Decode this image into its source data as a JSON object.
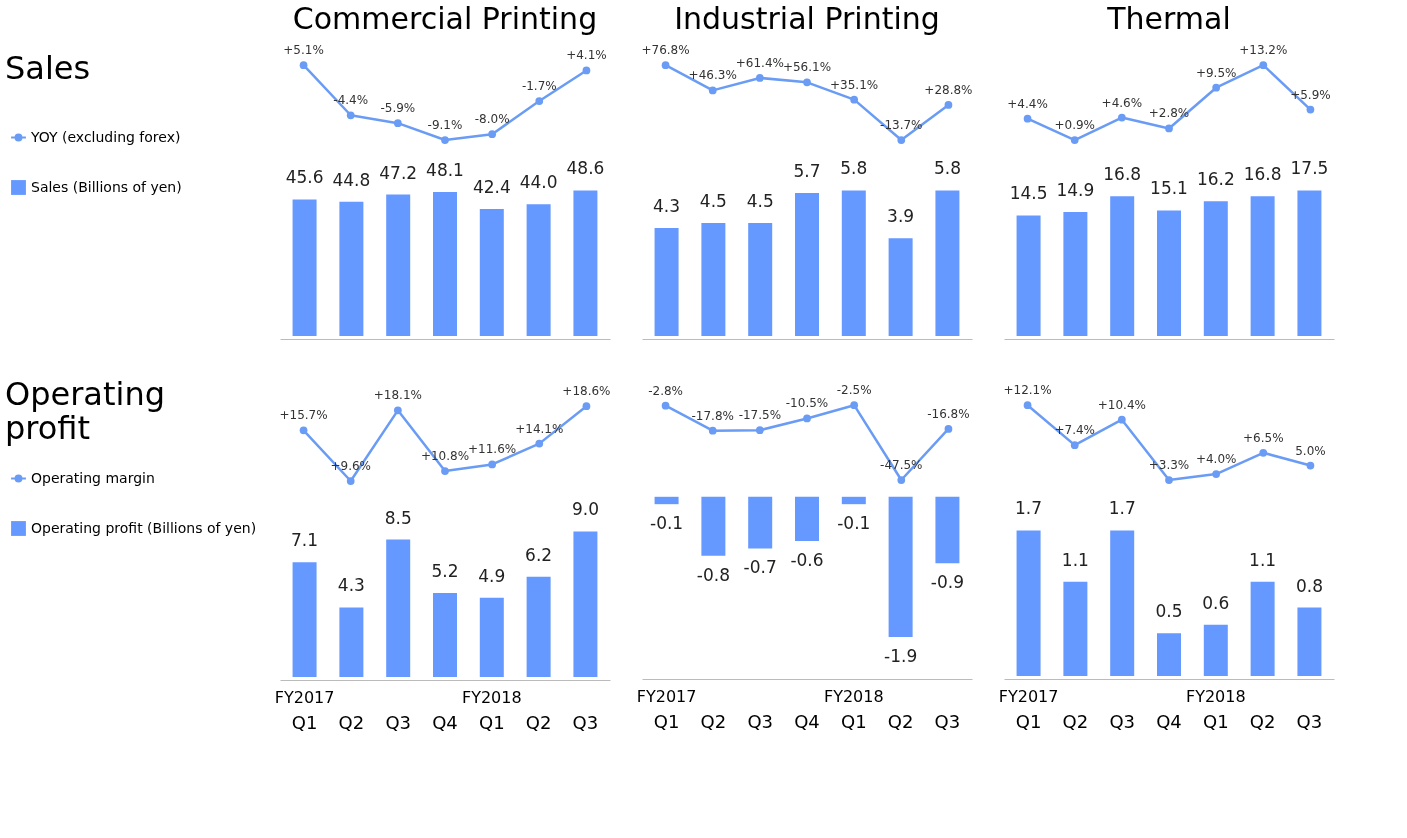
{
  "chart_data": [
    {
      "type": "line",
      "title": "Commercial Printing",
      "ylabel": "Sales",
      "categories": [
        null,
        null,
        null,
        null,
        null,
        null,
        null
      ],
      "tick_labels": false,
      "legend": "left",
      "marker": "circle",
      "series": [
        {
          "name": "YOY (excluding forex)",
          "color": "#6a9cf5",
          "values": [
            5.1,
            -4.4,
            -5.9,
            -9.1,
            -8.0,
            -1.7,
            4.1
          ],
          "value_labels": [
            "+5.1%",
            "-4.4%",
            "-5.9%",
            "-9.1%",
            "-8.0%",
            "-1.7%",
            "+4.1%"
          ]
        }
      ]
    },
    {
      "type": "line",
      "title": "Industrial Printing",
      "categories": [
        null,
        null,
        null,
        null,
        null,
        null,
        null
      ],
      "tick_labels": false,
      "marker": "circle",
      "series": [
        {
          "color": "#6a9cf5",
          "values": [
            76.8,
            46.3,
            61.4,
            56.1,
            35.1,
            -13.7,
            28.8
          ],
          "value_labels": [
            "+76.8%",
            "+46.3%",
            "+61.4%",
            "+56.1%",
            "+35.1%",
            "-13.7%",
            "+28.8%"
          ]
        }
      ]
    },
    {
      "type": "line",
      "title": "Thermal",
      "categories": [
        null,
        null,
        null,
        null,
        null,
        null,
        null
      ],
      "tick_labels": false,
      "marker": "circle",
      "series": [
        {
          "color": "#6a9cf5",
          "values": [
            4.4,
            0.9,
            4.6,
            2.8,
            9.5,
            13.2,
            5.9
          ],
          "value_labels": [
            "+4.4%",
            "+0.9%",
            "+4.6%",
            "+2.8%",
            "+9.5%",
            "+13.2%",
            "+5.9%"
          ]
        }
      ]
    },
    {
      "type": "bar",
      "categories": [
        null,
        null,
        null,
        null,
        null,
        null,
        null
      ],
      "tick_labels": false,
      "legend": "left",
      "series": [
        {
          "name": "Sales (Billions of yen)",
          "color": "#6699ff",
          "values": [
            45.6,
            44.8,
            47.2,
            48.1,
            42.4,
            44.0,
            48.6
          ],
          "value_labels": [
            "45.6",
            "44.8",
            "47.2",
            "48.1",
            "42.4",
            "44.0",
            "48.6"
          ]
        }
      ]
    },
    {
      "type": "bar",
      "categories": [
        null,
        null,
        null,
        null,
        null,
        null,
        null
      ],
      "tick_labels": false,
      "series": [
        {
          "color": "#6699ff",
          "values": [
            4.3,
            4.5,
            4.5,
            5.7,
            5.8,
            3.9,
            5.8
          ],
          "value_labels": [
            "4.3",
            "4.5",
            "4.5",
            "5.7",
            "5.8",
            "3.9",
            "5.8"
          ]
        }
      ]
    },
    {
      "type": "bar",
      "categories": [
        null,
        null,
        null,
        null,
        null,
        null,
        null
      ],
      "tick_labels": false,
      "series": [
        {
          "color": "#6699ff",
          "values": [
            14.5,
            14.9,
            16.8,
            15.1,
            16.2,
            16.8,
            17.5
          ],
          "value_labels": [
            "14.5",
            "14.9",
            "16.8",
            "15.1",
            "16.2",
            "16.8",
            "17.5"
          ]
        }
      ]
    },
    {
      "type": "line",
      "ylabel": "Operating profit",
      "categories": [
        null,
        null,
        null,
        null,
        null,
        null,
        null
      ],
      "tick_labels": false,
      "legend": "left",
      "marker": "circle",
      "series": [
        {
          "name": "Operating margin",
          "color": "#6a9cf5",
          "values": [
            15.7,
            9.6,
            18.1,
            10.8,
            11.6,
            14.1,
            18.6
          ],
          "value_labels": [
            "+15.7%",
            "+9.6%",
            "+18.1%",
            "+10.8%",
            "+11.6%",
            "+14.1%",
            "+18.6%"
          ]
        }
      ]
    },
    {
      "type": "line",
      "categories": [
        null,
        null,
        null,
        null,
        null,
        null,
        null
      ],
      "tick_labels": false,
      "marker": "circle",
      "series": [
        {
          "color": "#6a9cf5",
          "values": [
            -2.8,
            -17.8,
            -17.5,
            -10.5,
            -2.5,
            -47.5,
            -16.8
          ],
          "value_labels": [
            "-2.8%",
            "-17.8%",
            "-17.5%",
            "-10.5%",
            "-2.5%",
            "-47.5%",
            "-16.8%"
          ]
        }
      ]
    },
    {
      "type": "line",
      "categories": [
        null,
        null,
        null,
        null,
        null,
        null,
        null
      ],
      "tick_labels": false,
      "marker": "circle",
      "series": [
        {
          "color": "#6a9cf5",
          "values": [
            12.1,
            7.4,
            10.4,
            3.3,
            4.0,
            6.5,
            5.0
          ],
          "value_labels": [
            "+12.1%",
            "+7.4%",
            "+10.4%",
            "+3.3%",
            "+4.0%",
            "+6.5%",
            "5.0%"
          ]
        }
      ]
    },
    {
      "type": "bar",
      "categories": [
        "Q1",
        "Q2",
        "Q3",
        "Q4",
        "Q1",
        "Q2",
        "Q3"
      ],
      "tick_labels": "x",
      "legend": "left",
      "annotations": [
        "FY2017",
        "FY2018"
      ],
      "series": [
        {
          "name": "Operating profit (Billions of yen)",
          "color": "#6699ff",
          "values": [
            7.1,
            4.3,
            8.5,
            5.2,
            4.9,
            6.2,
            9.0
          ],
          "value_labels": [
            "7.1",
            "4.3",
            "8.5",
            "5.2",
            "4.9",
            "6.2",
            "9.0"
          ]
        }
      ]
    },
    {
      "type": "bar",
      "categories": [
        "Q1",
        "Q2",
        "Q3",
        "Q4",
        "Q1",
        "Q2",
        "Q3"
      ],
      "tick_labels": "x",
      "annotations": [
        "FY2017",
        "FY2018"
      ],
      "series": [
        {
          "color": "#6699ff",
          "values": [
            -0.1,
            -0.8,
            -0.7,
            -0.6,
            -0.1,
            -1.9,
            -0.9
          ],
          "value_labels": [
            "-0.1",
            "-0.8",
            "-0.7",
            "-0.6",
            "-0.1",
            "-1.9",
            "-0.9"
          ]
        }
      ]
    },
    {
      "type": "bar",
      "categories": [
        "Q1",
        "Q2",
        "Q3",
        "Q4",
        "Q1",
        "Q2",
        "Q3"
      ],
      "tick_labels": "x",
      "annotations": [
        "FY2017",
        "FY2018"
      ],
      "series": [
        {
          "color": "#6699ff",
          "values": [
            1.7,
            1.1,
            1.7,
            0.5,
            0.6,
            1.1,
            0.8
          ],
          "value_labels": [
            "1.7",
            "1.1",
            "1.7",
            "0.5",
            "0.6",
            "1.1",
            "0.8"
          ]
        }
      ]
    }
  ]
}
